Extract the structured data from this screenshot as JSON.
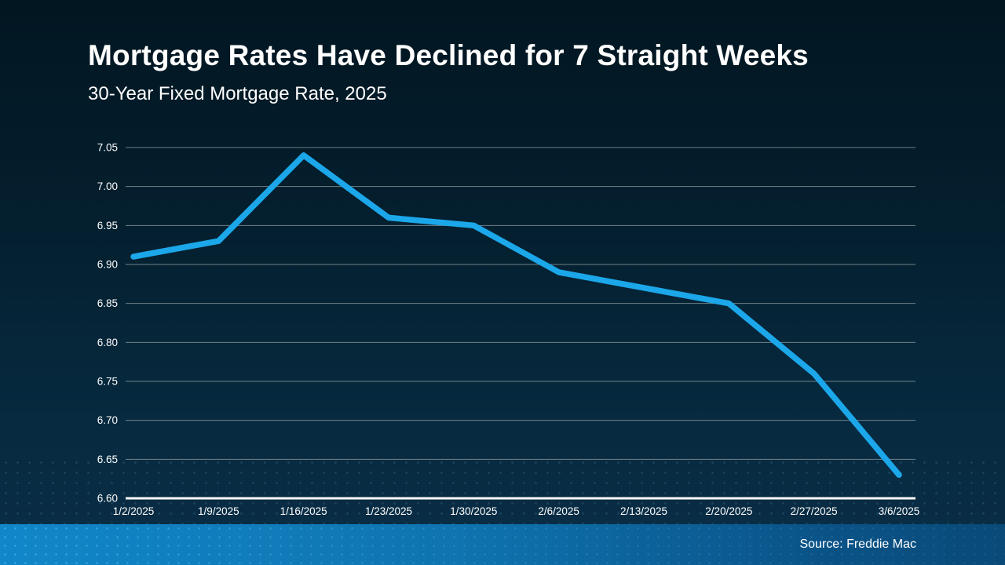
{
  "slide": {
    "title": "Mortgage Rates Have Declined for 7 Straight Weeks",
    "subtitle": "30-Year Fixed Mortgage Rate, 2025",
    "source": "Source: Freddie Mac"
  },
  "colors": {
    "background_top": "#021621",
    "background_bottom": "#0A2E46",
    "line": "#1BA7E9",
    "gridline": "#93A0A3",
    "axis": "#FFFFFF",
    "text": "#FFFFFF",
    "footer_left": "#1187C9",
    "footer_right": "#094A78"
  },
  "chart_data": {
    "type": "line",
    "title": "30-Year Fixed Mortgage Rate, 2025",
    "categories": [
      "1/2/2025",
      "1/9/2025",
      "1/16/2025",
      "1/23/2025",
      "1/30/2025",
      "2/6/2025",
      "2/13/2025",
      "2/20/2025",
      "2/27/2025",
      "3/6/2025"
    ],
    "series": [
      {
        "name": "30-Year Fixed Mortgage Rate",
        "values": [
          6.91,
          6.93,
          7.04,
          6.96,
          6.95,
          6.89,
          6.87,
          6.85,
          6.76,
          6.63
        ]
      }
    ],
    "xlabel": "",
    "ylabel": "",
    "ylim": [
      6.6,
      7.05
    ],
    "y_tick_step": 0.05,
    "y_tick_decimals": 2,
    "grid": "horizontal",
    "legend": "none",
    "line_color": "#1BA7E9"
  }
}
